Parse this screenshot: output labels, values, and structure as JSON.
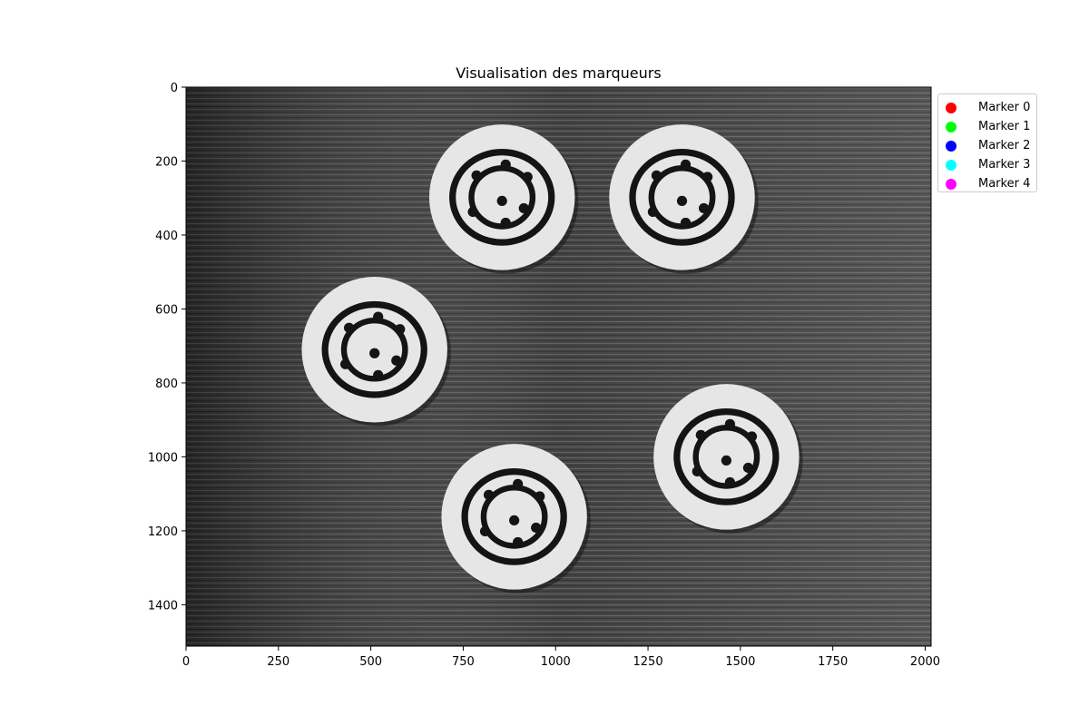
{
  "title": "Visualisation des marqueurs",
  "axes": {
    "x_ticks": [
      "0",
      "250",
      "500",
      "750",
      "1000",
      "1250",
      "1500",
      "1750",
      "2000"
    ],
    "y_ticks": [
      "0",
      "200",
      "400",
      "600",
      "800",
      "1000",
      "1200",
      "1400"
    ],
    "x_tick_values": [
      0,
      250,
      500,
      750,
      1000,
      1250,
      1500,
      1750,
      2000
    ],
    "y_tick_values": [
      0,
      200,
      400,
      600,
      800,
      1000,
      1200,
      1400
    ],
    "xlim": [
      0,
      2016
    ],
    "ylim": [
      1512,
      0
    ]
  },
  "legend": {
    "placement": "outside-top-right",
    "items": [
      {
        "label": "Marker 0",
        "color": "#ff0000"
      },
      {
        "label": "Marker 1",
        "color": "#00ff00"
      },
      {
        "label": "Marker 2",
        "color": "#0000ff"
      },
      {
        "label": "Marker 3",
        "color": "#00ffff"
      },
      {
        "label": "Marker 4",
        "color": "#ff00ff"
      }
    ]
  },
  "image": {
    "description_icon": "grayscale-wood-photo",
    "discs": [
      {
        "cx": 855,
        "cy": 298,
        "r": 197
      },
      {
        "cx": 1342,
        "cy": 298,
        "r": 197
      },
      {
        "cx": 510,
        "cy": 710,
        "r": 197
      },
      {
        "cx": 1462,
        "cy": 1000,
        "r": 197
      },
      {
        "cx": 888,
        "cy": 1162,
        "r": 197
      }
    ]
  }
}
